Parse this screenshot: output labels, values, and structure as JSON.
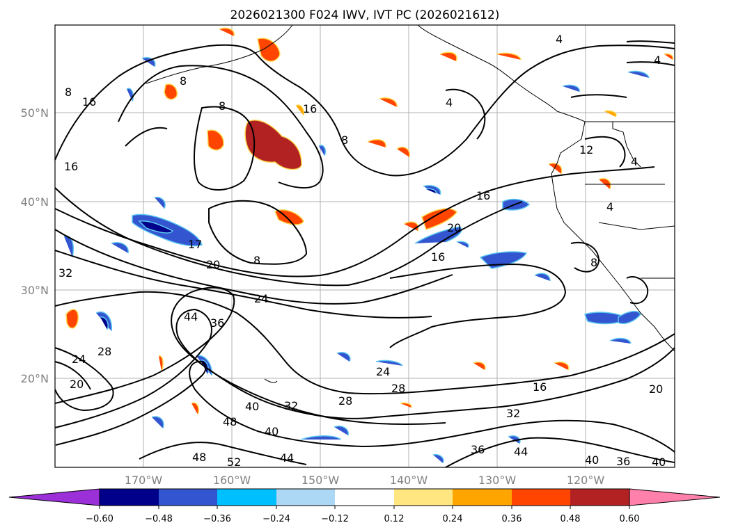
{
  "title": "2026021300 F024 IWV, IVT PC (2026021612)",
  "lat_labels": [
    "50°N",
    "40°N",
    "30°N",
    "20°N"
  ],
  "lon_labels": [
    "170°W",
    "160°W",
    "150°W",
    "140°W",
    "130°W",
    "120°W"
  ],
  "colorbar": {
    "ticks": [
      "−0.60",
      "−0.48",
      "−0.36",
      "−0.24",
      "−0.12",
      "0.12",
      "0.24",
      "0.36",
      "0.48",
      "0.60"
    ],
    "colors": [
      "#9b30d8",
      "#00008b",
      "#3355d0",
      "#00bfff",
      "#add8f5",
      "#ffffff",
      "#ffe680",
      "#ffa500",
      "#ff4500",
      "#b22222",
      "#ff80aa"
    ]
  },
  "contour_labels": [
    "8",
    "16",
    "8",
    "16",
    "8",
    "16",
    "8",
    "4",
    "4",
    "12",
    "4",
    "4",
    "16",
    "20",
    "16",
    "8",
    "17",
    "20",
    "24",
    "32",
    "36",
    "44",
    "28",
    "24",
    "20",
    "24",
    "28",
    "16",
    "32",
    "40",
    "48",
    "40",
    "32",
    "28",
    "36",
    "44",
    "40",
    "36",
    "40",
    "52",
    "48",
    "44",
    "20",
    "4",
    "8"
  ]
}
